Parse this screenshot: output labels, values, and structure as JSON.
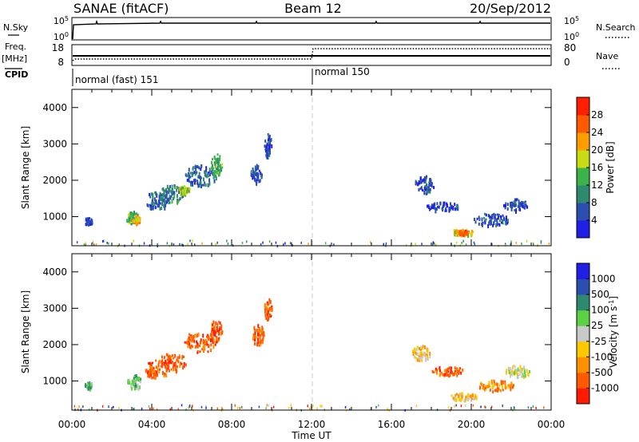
{
  "header": {
    "title_left": "SANAE (fitACF)",
    "title_center": "Beam 12",
    "title_right": "20/Sep/2012"
  },
  "nsky_panel": {
    "label_left": "N.Sky",
    "label_right": "N.Search",
    "left_ticks": [
      "10^5",
      "10^0"
    ],
    "right_ticks": [
      "10^5",
      "10^0"
    ]
  },
  "freq_panel": {
    "label_left_1": "Freq.",
    "label_left_2": "[MHz]",
    "label_right": "Nave",
    "left_ticks": [
      "18",
      "8"
    ],
    "right_ticks": [
      "80",
      "0"
    ]
  },
  "cpid_panel": {
    "label": "CPID",
    "segments": [
      {
        "start_hour": 0,
        "end_hour": 12,
        "text": "normal (fast) 151"
      },
      {
        "start_hour": 12,
        "end_hour": 24,
        "text": "normal 150"
      }
    ]
  },
  "time_axis": {
    "label": "Time UT",
    "ticks": [
      {
        "hour": 0,
        "label": "00:00"
      },
      {
        "hour": 4,
        "label": "04:00"
      },
      {
        "hour": 8,
        "label": "08:00"
      },
      {
        "hour": 12,
        "label": "12:00"
      },
      {
        "hour": 16,
        "label": "16:00"
      },
      {
        "hour": 20,
        "label": "20:00"
      },
      {
        "hour": 24,
        "label": "00:00"
      }
    ]
  },
  "colors": {
    "power": [
      "#1f1fe6",
      "#2a4fb0",
      "#2e8a6e",
      "#3cb24a",
      "#c8dc14",
      "#ff9c00",
      "#ff5a00",
      "#ff1e00"
    ],
    "velocity": [
      "#ff1a00",
      "#ff5a00",
      "#ff9000",
      "#ffc800",
      "#c8c8c8",
      "#5ad242",
      "#2e8a6e",
      "#2a4fb0",
      "#1f1fe6"
    ]
  },
  "chart_data": [
    {
      "type": "heatmap",
      "name": "power",
      "ylabel": "Slant Range [km]",
      "xlabel": "",
      "xlim": [
        0,
        24
      ],
      "ylim": [
        200,
        4500
      ],
      "yticks": [
        1000,
        2000,
        3000,
        4000
      ],
      "colorbar": {
        "label": "Power [dB]",
        "range": [
          0,
          32
        ],
        "ticks": [
          4,
          8,
          12,
          16,
          20,
          24,
          28
        ]
      },
      "blobs": [
        {
          "t": 3.0,
          "r": 1000,
          "dt": 0.3,
          "dr": 180,
          "v": 14
        },
        {
          "t": 3.2,
          "r": 950,
          "dt": 0.2,
          "dr": 120,
          "v": 22
        },
        {
          "t": 4.2,
          "r": 1450,
          "dt": 0.6,
          "dr": 250,
          "v": 8
        },
        {
          "t": 5.0,
          "r": 1650,
          "dt": 0.7,
          "dr": 250,
          "v": 10
        },
        {
          "t": 5.6,
          "r": 1750,
          "dt": 0.3,
          "dr": 120,
          "v": 18
        },
        {
          "t": 6.4,
          "r": 2150,
          "dt": 0.8,
          "dr": 300,
          "v": 8
        },
        {
          "t": 7.2,
          "r": 2450,
          "dt": 0.3,
          "dr": 300,
          "v": 14
        },
        {
          "t": 9.2,
          "r": 2200,
          "dt": 0.3,
          "dr": 250,
          "v": 6
        },
        {
          "t": 9.8,
          "r": 3000,
          "dt": 0.2,
          "dr": 350,
          "v": 6
        },
        {
          "t": 17.6,
          "r": 1900,
          "dt": 0.5,
          "dr": 250,
          "v": 6
        },
        {
          "t": 18.6,
          "r": 1300,
          "dt": 0.9,
          "dr": 120,
          "v": 6
        },
        {
          "t": 19.5,
          "r": 600,
          "dt": 0.6,
          "dr": 90,
          "v": 20
        },
        {
          "t": 19.5,
          "r": 600,
          "dt": 0.3,
          "dr": 60,
          "v": 26
        },
        {
          "t": 21.0,
          "r": 950,
          "dt": 0.9,
          "dr": 180,
          "v": 6
        },
        {
          "t": 22.2,
          "r": 1350,
          "dt": 0.6,
          "dr": 160,
          "v": 6
        },
        {
          "t": 0.8,
          "r": 900,
          "dt": 0.2,
          "dr": 100,
          "v": 6
        }
      ]
    },
    {
      "type": "heatmap",
      "name": "velocity",
      "ylabel": "Slant Range [km]",
      "xlabel": "Time UT",
      "xlim": [
        0,
        24
      ],
      "ylim": [
        200,
        4500
      ],
      "yticks": [
        1000,
        2000,
        3000,
        4000
      ],
      "colorbar": {
        "label": "Velocity [m s^-1]",
        "tick_labels": [
          "-1000",
          "-500",
          "-100",
          "-25",
          "25",
          "100",
          "500",
          "1000"
        ]
      },
      "blobs": [
        {
          "t": 3.1,
          "r": 1000,
          "dt": 0.35,
          "dr": 200,
          "v": 5
        },
        {
          "t": 4.2,
          "r": 1350,
          "dt": 0.6,
          "dr": 250,
          "v": 1
        },
        {
          "t": 5.0,
          "r": 1550,
          "dt": 0.7,
          "dr": 250,
          "v": 1
        },
        {
          "t": 6.4,
          "r": 2100,
          "dt": 0.8,
          "dr": 300,
          "v": 1
        },
        {
          "t": 7.2,
          "r": 2400,
          "dt": 0.3,
          "dr": 300,
          "v": 1
        },
        {
          "t": 9.3,
          "r": 2300,
          "dt": 0.3,
          "dr": 300,
          "v": 1
        },
        {
          "t": 9.8,
          "r": 3000,
          "dt": 0.2,
          "dr": 300,
          "v": 1
        },
        {
          "t": 17.5,
          "r": 1800,
          "dt": 0.5,
          "dr": 200,
          "v": 3
        },
        {
          "t": 18.8,
          "r": 1300,
          "dt": 0.8,
          "dr": 130,
          "v": 1
        },
        {
          "t": 19.6,
          "r": 600,
          "dt": 0.7,
          "dr": 100,
          "v": 3
        },
        {
          "t": 21.2,
          "r": 900,
          "dt": 0.9,
          "dr": 160,
          "v": 2
        },
        {
          "t": 22.3,
          "r": 1300,
          "dt": 0.6,
          "dr": 160,
          "v": 4
        },
        {
          "t": 0.8,
          "r": 900,
          "dt": 0.2,
          "dr": 100,
          "v": 5
        }
      ]
    }
  ]
}
